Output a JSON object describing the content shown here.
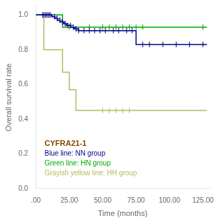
{
  "chart_data": {
    "type": "step",
    "title": "",
    "xlabel": "Time (months)",
    "ylabel": "Overall survival rate",
    "xlim": [
      0,
      130
    ],
    "ylim": [
      0.0,
      1.05
    ],
    "xticks": [
      {
        "value": 0,
        "label": ".00"
      },
      {
        "value": 25.0,
        "label": "25.00"
      },
      {
        "value": 50.0,
        "label": "50.00"
      },
      {
        "value": 75.0,
        "label": "75.00"
      },
      {
        "value": 100.0,
        "label": "100.00"
      },
      {
        "value": 125.0,
        "label": "125.00"
      }
    ],
    "yticks": [
      {
        "value": 0.0,
        "label": "0.0"
      },
      0.2,
      0.4,
      0.6,
      0.8,
      {
        "value": 1.0,
        "label": "1.0"
      }
    ],
    "grid": false,
    "legend": "lower left",
    "annotations": [
      {
        "text": "CYFRA21-1",
        "color": "#8b4500"
      }
    ],
    "series": [
      {
        "name": "Blue line: NN group",
        "color": "#00008b",
        "x": [
          0,
          2,
          3,
          4,
          5,
          6,
          7,
          8,
          9,
          10,
          11,
          12,
          13,
          14,
          15,
          16,
          17,
          18,
          19,
          20,
          21,
          22,
          23,
          24,
          25,
          26,
          27,
          28,
          29,
          30,
          31,
          32,
          33,
          34,
          36,
          38,
          40,
          42,
          44,
          46,
          48,
          50,
          52,
          55,
          58,
          60,
          62,
          65,
          68,
          70,
          72,
          75,
          78,
          80,
          82,
          85,
          90,
          95,
          100,
          105,
          110,
          115,
          120,
          125,
          128
        ],
        "values": [
          1.0,
          1.0,
          1.0,
          1.0,
          1.0,
          1.0,
          1.0,
          1.0,
          1.0,
          1.0,
          1.0,
          1.0,
          0.99,
          0.99,
          0.98,
          0.98,
          0.97,
          0.97,
          0.96,
          0.96,
          0.96,
          0.95,
          0.95,
          0.94,
          0.94,
          0.94,
          0.93,
          0.93,
          0.93,
          0.92,
          0.92,
          0.92,
          0.91,
          0.91,
          0.91,
          0.91,
          0.91,
          0.91,
          0.91,
          0.91,
          0.91,
          0.91,
          0.91,
          0.91,
          0.91,
          0.91,
          0.91,
          0.91,
          0.91,
          0.91,
          0.91,
          0.91,
          0.83,
          0.83,
          0.83,
          0.83,
          0.83,
          0.83,
          0.83,
          0.83,
          0.83,
          0.83,
          0.83,
          0.83,
          0.83
        ],
        "censor_x": [
          5,
          6,
          7,
          8,
          9,
          10,
          11,
          14,
          16,
          18,
          20,
          22,
          24,
          26,
          28,
          30,
          32,
          36,
          40,
          44,
          48,
          52,
          58,
          62,
          68,
          72,
          80,
          85,
          95,
          105,
          115,
          125
        ],
        "censor_values": [
          1.0,
          1.0,
          1.0,
          1.0,
          1.0,
          1.0,
          1.0,
          0.99,
          0.98,
          0.97,
          0.96,
          0.95,
          0.94,
          0.94,
          0.93,
          0.92,
          0.91,
          0.91,
          0.91,
          0.91,
          0.91,
          0.91,
          0.91,
          0.91,
          0.91,
          0.91,
          0.83,
          0.83,
          0.83,
          0.83,
          0.83,
          0.83
        ]
      },
      {
        "name": "Green line: HN group",
        "color": "#00aa00",
        "x": [
          0,
          20,
          21,
          25,
          26,
          128
        ],
        "values": [
          1.0,
          1.0,
          0.93,
          0.93,
          0.93,
          0.93
        ],
        "censor_x": [
          25,
          40,
          50,
          55,
          60,
          65,
          70,
          75,
          80,
          125
        ],
        "censor_values": [
          0.93,
          0.93,
          0.93,
          0.93,
          0.93,
          0.93,
          0.93,
          0.93,
          0.93,
          0.93
        ]
      },
      {
        "name": "Grayish yellow line: HH group",
        "color": "#b8b860",
        "x": [
          0,
          6,
          6,
          20,
          21,
          25,
          26,
          30,
          40,
          50,
          55,
          60,
          65,
          70,
          128
        ],
        "values": [
          1.0,
          1.0,
          0.8,
          0.8,
          0.67,
          0.67,
          0.57,
          0.57,
          0.45,
          0.45,
          0.45,
          0.45,
          0.45,
          0.45,
          0.45
        ],
        "censor_x": [
          50,
          55,
          60,
          65,
          70
        ],
        "censor_values": [
          0.45,
          0.45,
          0.45,
          0.45,
          0.45
        ]
      }
    ]
  }
}
